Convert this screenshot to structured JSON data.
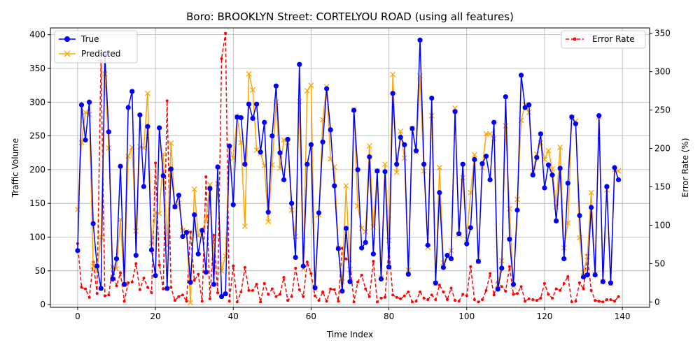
{
  "chart_data": {
    "type": "line",
    "title": "Boro: BROOKLYN Street: CORTELYOU ROAD (using all features)",
    "xlabel": "Time Index",
    "ylabel": "Traffic Volume",
    "ylabel_right": "Error Rate (%)",
    "xlim": [
      -7,
      147
    ],
    "ylim": [
      -4,
      410
    ],
    "ylim_right": [
      -7,
      357
    ],
    "x_ticks": [
      0,
      20,
      40,
      60,
      80,
      100,
      120,
      140
    ],
    "y_ticks": [
      0,
      50,
      100,
      150,
      200,
      250,
      300,
      350,
      400
    ],
    "y_ticks_right": [
      0,
      50,
      100,
      150,
      200,
      250,
      300,
      350
    ],
    "grid": true,
    "legend_left": "upper left",
    "legend_right": "upper right",
    "colors": {
      "true": "#0000ff",
      "predicted": "#ffa500",
      "error": "#ff0000"
    },
    "series": [
      {
        "name": "True",
        "axis": "left",
        "values": [
          80,
          296,
          244,
          300,
          120,
          57,
          24,
          370,
          256,
          38,
          68,
          205,
          30,
          292,
          316,
          73,
          281,
          175,
          264,
          81,
          43,
          262,
          191,
          24,
          201,
          145,
          162,
          101,
          107,
          33,
          133,
          75,
          110,
          48,
          172,
          30,
          204,
          12,
          16,
          235,
          148,
          278,
          277,
          208,
          297,
          276,
          297,
          226,
          270,
          137,
          250,
          324,
          225,
          185,
          245,
          150,
          70,
          356,
          57,
          208,
          237,
          25,
          136,
          241,
          320,
          259,
          176,
          83,
          20,
          113,
          34,
          288,
          200,
          84,
          92,
          219,
          75,
          198,
          38,
          197,
          56,
          313,
          208,
          248,
          237,
          45,
          261,
          228,
          392,
          208,
          88,
          306,
          32,
          166,
          55,
          73,
          68,
          286,
          105,
          208,
          90,
          114,
          215,
          64,
          209,
          220,
          185,
          270,
          23,
          54,
          308,
          97,
          30,
          140,
          340,
          292,
          296,
          192,
          218,
          253,
          173,
          207,
          192,
          124,
          202,
          68,
          180,
          278,
          268,
          132,
          41,
          44,
          144,
          44,
          280,
          34,
          175,
          32,
          203,
          185
        ]
      },
      {
        "name": "Predicted",
        "axis": "left",
        "values": [
          141,
          240,
          285,
          282,
          57,
          50,
          100,
          342,
          232,
          56,
          53,
          126,
          30,
          220,
          233,
          109,
          234,
          232,
          313,
          91,
          136,
          135,
          223,
          87,
          239,
          145,
          150,
          110,
          108,
          3,
          171,
          102,
          109,
          126,
          178,
          56,
          179,
          50,
          72,
          233,
          217,
          278,
          240,
          116,
          342,
          318,
          229,
          224,
          206,
          123,
          207,
          300,
          202,
          244,
          240,
          140,
          101,
          301,
          53,
          317,
          325,
          23,
          133,
          274,
          323,
          216,
          204,
          84,
          34,
          176,
          52,
          289,
          146,
          113,
          108,
          235,
          115,
          198,
          40,
          208,
          95,
          341,
          196,
          257,
          217,
          51,
          261,
          226,
          339,
          198,
          85,
          280,
          31,
          203,
          62,
          71,
          80,
          291,
          104,
          188,
          97,
          166,
          222,
          64,
          203,
          253,
          253,
          246,
          29,
          65,
          265,
          142,
          27,
          156,
          273,
          296,
          285,
          198,
          223,
          240,
          215,
          228,
          201,
          145,
          233,
          84,
          121,
          277,
          272,
          99,
          48,
          71,
          166,
          45,
          278,
          34,
          170,
          31,
          200,
          198
        ]
      },
      {
        "name": "Error Rate",
        "axis": "right",
        "values": [
          76,
          19,
          17,
          6,
          52,
          11,
          315,
          8,
          9,
          46,
          21,
          38,
          1,
          25,
          26,
          50,
          16,
          31,
          19,
          12,
          181,
          48,
          17,
          262,
          19,
          2,
          7,
          9,
          1,
          91,
          28,
          36,
          1,
          163,
          4,
          87,
          12,
          317,
          350,
          1,
          47,
          0,
          13,
          45,
          15,
          15,
          23,
          0,
          24,
          10,
          17,
          7,
          10,
          32,
          2,
          7,
          44,
          16,
          7,
          52,
          37,
          8,
          2,
          13,
          1,
          17,
          16,
          1,
          70,
          56,
          53,
          0,
          26,
          35,
          17,
          7,
          53,
          0,
          5,
          6,
          70,
          9,
          6,
          4,
          8,
          13,
          0,
          1,
          13,
          5,
          3,
          9,
          3,
          22,
          13,
          3,
          18,
          2,
          1,
          10,
          8,
          46,
          3,
          0,
          3,
          15,
          37,
          9,
          26,
          20,
          14,
          46,
          10,
          11,
          20,
          1,
          4,
          3,
          2,
          5,
          24,
          10,
          5,
          17,
          15,
          24,
          33,
          0,
          1,
          25,
          17,
          61,
          15,
          2,
          1,
          0,
          3,
          3,
          1,
          7
        ]
      }
    ]
  }
}
